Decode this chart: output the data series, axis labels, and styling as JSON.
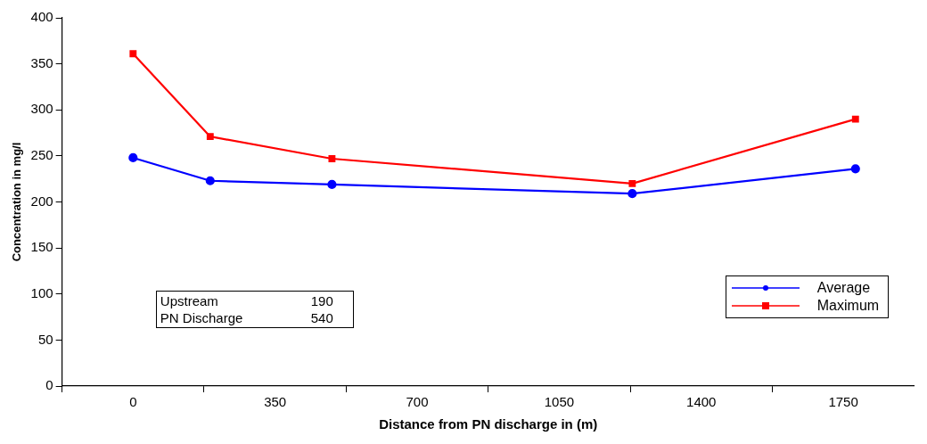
{
  "chart_data": {
    "type": "line",
    "xlabel": "Distance from PN discharge in (m)",
    "ylabel": "Concentration in mg/l",
    "x": [
      0,
      190,
      490,
      1230,
      1780
    ],
    "series": [
      {
        "name": "Average",
        "color": "#0000ff",
        "marker": "circle",
        "values": [
          248,
          223,
          219,
          209,
          236
        ]
      },
      {
        "name": "Maximum",
        "color": "#ff0000",
        "marker": "square",
        "values": [
          361,
          271,
          247,
          220,
          290
        ]
      }
    ],
    "xlim": [
      -175,
      1925
    ],
    "xticks": [
      {
        "value": -175,
        "label": null
      },
      0,
      {
        "value": 175,
        "label": null
      },
      350,
      {
        "value": 525,
        "label": null
      },
      700,
      {
        "value": 875,
        "label": null
      },
      1050,
      {
        "value": 1225,
        "label": null
      },
      1400,
      {
        "value": 1575,
        "label": null
      },
      1750
    ],
    "ylim": [
      0,
      400
    ],
    "yticks": [
      0,
      50,
      100,
      150,
      200,
      250,
      300,
      350,
      400
    ],
    "grid": false,
    "legend": "right",
    "annotations": [
      "Upstream 190",
      "PN Discharge 540"
    ]
  }
}
